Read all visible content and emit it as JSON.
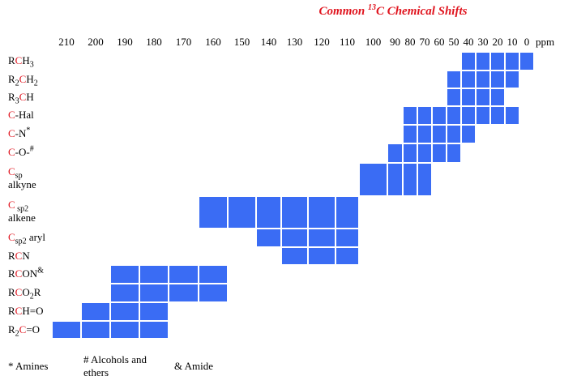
{
  "title": [
    {
      "text": "Common "
    },
    {
      "text": "13",
      "pos": "sup"
    },
    {
      "text": "C Chemical Shifts"
    }
  ],
  "columns": [
    210,
    200,
    190,
    180,
    170,
    160,
    150,
    140,
    130,
    120,
    110,
    100,
    90,
    80,
    70,
    60,
    50,
    40,
    30,
    20,
    10,
    0
  ],
  "unit": "ppm",
  "rows": [
    {
      "label": [
        {
          "text": "R"
        },
        {
          "text": "C",
          "color": "red"
        },
        {
          "text": "H"
        },
        {
          "text": "3",
          "pos": "sub"
        }
      ],
      "range": [
        40,
        0
      ]
    },
    {
      "label": [
        {
          "text": "R"
        },
        {
          "text": "2",
          "pos": "sub"
        },
        {
          "text": "C",
          "color": "red"
        },
        {
          "text": "H"
        },
        {
          "text": "2",
          "pos": "sub"
        }
      ],
      "range": [
        50,
        10
      ]
    },
    {
      "label": [
        {
          "text": "R"
        },
        {
          "text": "3",
          "pos": "sub"
        },
        {
          "text": "C",
          "color": "red"
        },
        {
          "text": "H"
        }
      ],
      "range": [
        50,
        20
      ]
    },
    {
      "label": [
        {
          "text": "C",
          "color": "red"
        },
        {
          "text": "-Hal"
        }
      ],
      "range": [
        80,
        10
      ]
    },
    {
      "label": [
        {
          "text": "C",
          "color": "red"
        },
        {
          "text": "-N"
        },
        {
          "text": "*",
          "pos": "sup"
        }
      ],
      "range": [
        80,
        40
      ]
    },
    {
      "label": [
        {
          "text": "C",
          "color": "red"
        },
        {
          "text": "-O-"
        },
        {
          "text": "#",
          "pos": "sup"
        }
      ],
      "range": [
        90,
        50
      ]
    },
    {
      "label": [
        {
          "text": "C",
          "color": "red"
        },
        {
          "text": "sp",
          "pos": "sub"
        },
        {
          "text": "alkyne",
          "line": 2
        }
      ],
      "range": [
        100,
        70
      ]
    },
    {
      "label": [
        {
          "text": "C",
          "color": "red"
        },
        {
          "text": " sp2",
          "pos": "sub"
        },
        {
          "text": "alkene",
          "line": 2
        }
      ],
      "range": [
        160,
        110
      ]
    },
    {
      "label": [
        {
          "text": "C",
          "color": "red"
        },
        {
          "text": "sp2",
          "pos": "sub"
        },
        {
          "text": " aryl"
        }
      ],
      "range": [
        140,
        110
      ]
    },
    {
      "label": [
        {
          "text": "R"
        },
        {
          "text": "C",
          "color": "red"
        },
        {
          "text": "N"
        }
      ],
      "range": [
        130,
        110
      ]
    },
    {
      "label": [
        {
          "text": "R"
        },
        {
          "text": "C",
          "color": "red"
        },
        {
          "text": "ON"
        },
        {
          "text": "&",
          "pos": "sup"
        }
      ],
      "range": [
        190,
        160
      ]
    },
    {
      "label": [
        {
          "text": "R"
        },
        {
          "text": "C",
          "color": "red"
        },
        {
          "text": "O"
        },
        {
          "text": "2",
          "pos": "sub"
        },
        {
          "text": "R"
        }
      ],
      "range": [
        190,
        160
      ]
    },
    {
      "label": [
        {
          "text": "R"
        },
        {
          "text": "C",
          "color": "red"
        },
        {
          "text": "H=O"
        }
      ],
      "range": [
        200,
        180
      ]
    },
    {
      "label": [
        {
          "text": "R"
        },
        {
          "text": "2",
          "pos": "sub"
        },
        {
          "text": "C",
          "color": "red"
        },
        {
          "text": "=O"
        }
      ],
      "range": [
        210,
        180
      ]
    }
  ],
  "footnotes": [
    "* Amines",
    "# Alcohols and ethers",
    "& Amide"
  ]
}
